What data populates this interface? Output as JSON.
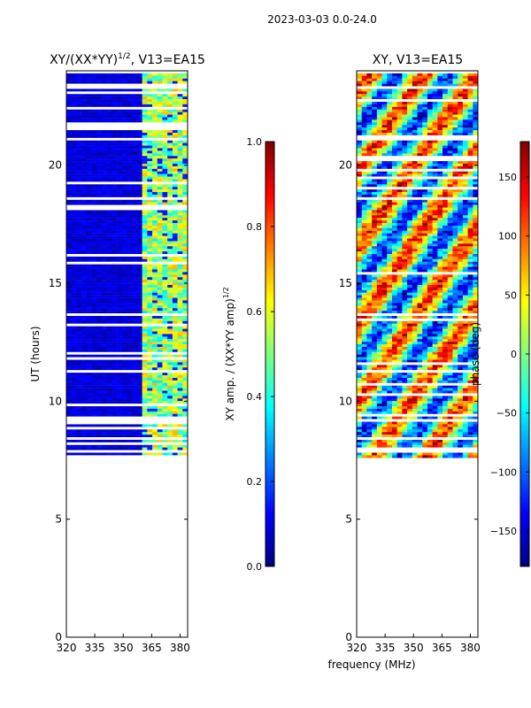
{
  "suptitle": "2023-03-03 0.0-24.0",
  "xlabel": "frequency (MHz)",
  "colors": {
    "jet_stops": [
      "#00007f",
      "#0000ff",
      "#007fff",
      "#00ffff",
      "#7fff7f",
      "#ffff00",
      "#ff7f00",
      "#ff0000",
      "#7f0000"
    ],
    "blank": "#ffffff",
    "axis": "#000000"
  },
  "chart_data": [
    {
      "type": "heatmap",
      "title_main": "XY/(XX*YY)",
      "title_sup": "1/2",
      "title_rest": ", V13=EA15",
      "xlabel": "",
      "ylabel": "UT (hours)",
      "xlim": [
        320,
        384
      ],
      "ylim": [
        0,
        24
      ],
      "xticks": [
        320,
        335,
        350,
        365,
        380
      ],
      "yticks": [
        0,
        5,
        10,
        15,
        20
      ],
      "data_coverage_hours": [
        7.6,
        24.0
      ],
      "colorbar": {
        "label_main": "XY amp. / (XX*YY amp)",
        "label_sup": "1/2",
        "range": [
          0.0,
          1.0
        ],
        "ticks": [
          "0.0",
          "0.2",
          "0.4",
          "0.6",
          "0.8",
          "1.0"
        ]
      }
    },
    {
      "type": "heatmap",
      "title_main": "XY, V13=EA15",
      "xlabel": "frequency (MHz)",
      "ylabel": "",
      "xlim": [
        320,
        384
      ],
      "ylim": [
        0,
        24
      ],
      "xticks": [
        320,
        335,
        350,
        365,
        380
      ],
      "yticks": [
        0,
        5,
        10,
        15,
        20
      ],
      "data_coverage_hours": [
        7.6,
        24.0
      ],
      "colorbar": {
        "label_main": "phase (deg)",
        "range": [
          -180,
          180
        ],
        "ticks": [
          "−150",
          "−100",
          "−50",
          "0",
          "50",
          "100",
          "150"
        ]
      }
    }
  ]
}
